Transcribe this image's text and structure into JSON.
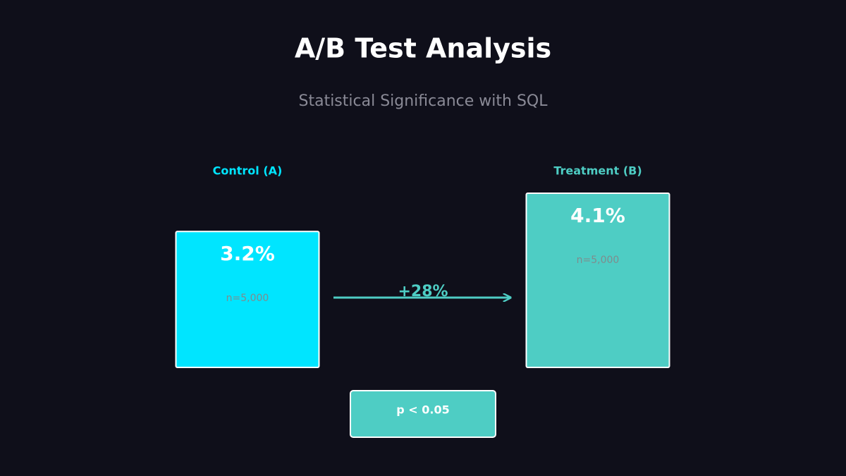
{
  "chart_data": {
    "type": "bar",
    "title": "A/B Test Analysis",
    "subtitle": "Statistical Significance with SQL",
    "categories": [
      "Control (A)",
      "Treatment (B)"
    ],
    "values": [
      3.2,
      4.1
    ],
    "value_labels": [
      "3.2%",
      "4.1%"
    ],
    "colors": [
      "#00e5ff",
      "#4ecdc4"
    ],
    "sample_labels": [
      "n=5,000",
      "n=5,000"
    ],
    "lift_label": "+28%",
    "significance_label": "p < 0.05"
  }
}
